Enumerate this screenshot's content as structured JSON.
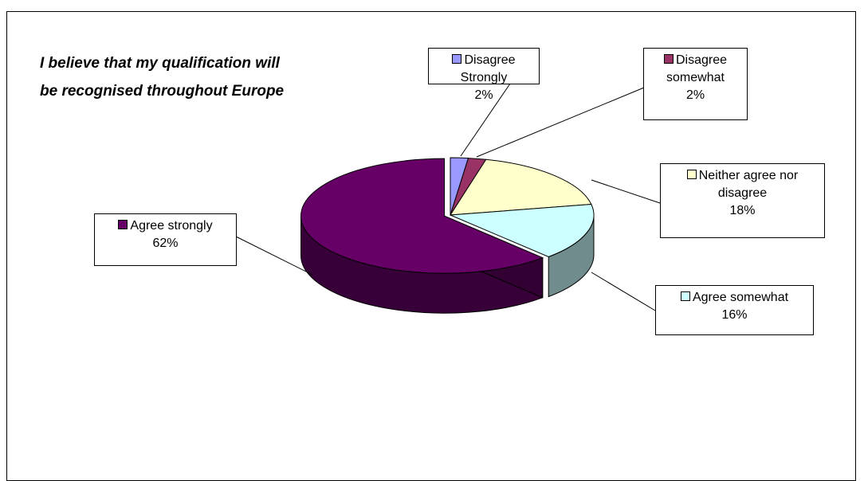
{
  "chart_data": {
    "type": "pie3d",
    "title": "I believe that my qualification will be recognised throughout Europe",
    "categories": [
      "Disagree Strongly",
      "Disagree somewhat",
      "Neither agree nor disagree",
      "Agree somewhat",
      "Agree strongly"
    ],
    "values": [
      2,
      2,
      18,
      16,
      62
    ],
    "value_labels": [
      "2%",
      "2%",
      "18%",
      "16%",
      "62%"
    ],
    "colors": [
      "#9999ff",
      "#993366",
      "#ffffcc",
      "#ccffff",
      "#660066"
    ]
  }
}
